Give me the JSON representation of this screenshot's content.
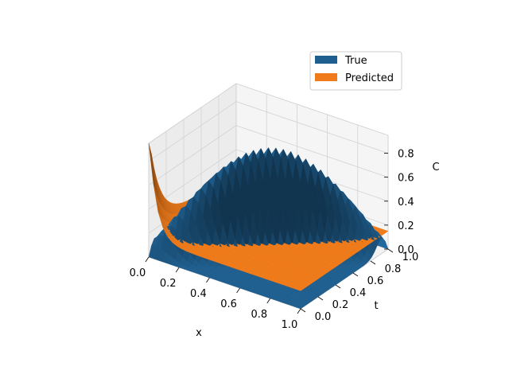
{
  "chart_data": {
    "type": "surface3d",
    "title": "",
    "xlabel": "x",
    "ylabel": "t",
    "zlabel": "C",
    "xlim": [
      0,
      1
    ],
    "ylim": [
      0,
      1
    ],
    "zlim": [
      0,
      0.95
    ],
    "x_ticks": [
      "0.0",
      "0.2",
      "0.4",
      "0.6",
      "0.8",
      "1.0"
    ],
    "y_ticks": [
      "0.0",
      "0.2",
      "0.4",
      "0.6",
      "0.8",
      "1.0"
    ],
    "z_ticks": [
      "0.0",
      "0.2",
      "0.4",
      "0.6",
      "0.8"
    ],
    "grid": true,
    "legend_position": "top-right",
    "series": [
      {
        "name": "True",
        "color": "#1f5f8f",
        "surface": "Gaussian pulse travelling in x as t increases",
        "values": {
          "t": [
            0.0,
            0.25,
            0.5,
            0.75,
            1.0
          ],
          "peak_x": [
            0.0,
            0.25,
            0.5,
            0.75,
            1.0
          ],
          "peak_C": [
            0.0,
            0.45,
            0.88,
            0.45,
            0.0
          ]
        }
      },
      {
        "name": "Predicted",
        "color": "#ef7b1a",
        "surface": "Edge spike at x = 0 decaying in t, plateau near C ≈ 0.15",
        "values": {
          "t": [
            0.0,
            0.1,
            0.3,
            0.6,
            1.0
          ],
          "C_at_x0": [
            0.95,
            0.55,
            0.3,
            0.18,
            0.15
          ],
          "C_plateau": [
            0.15,
            0.15,
            0.15,
            0.15,
            0.15
          ]
        }
      }
    ]
  }
}
